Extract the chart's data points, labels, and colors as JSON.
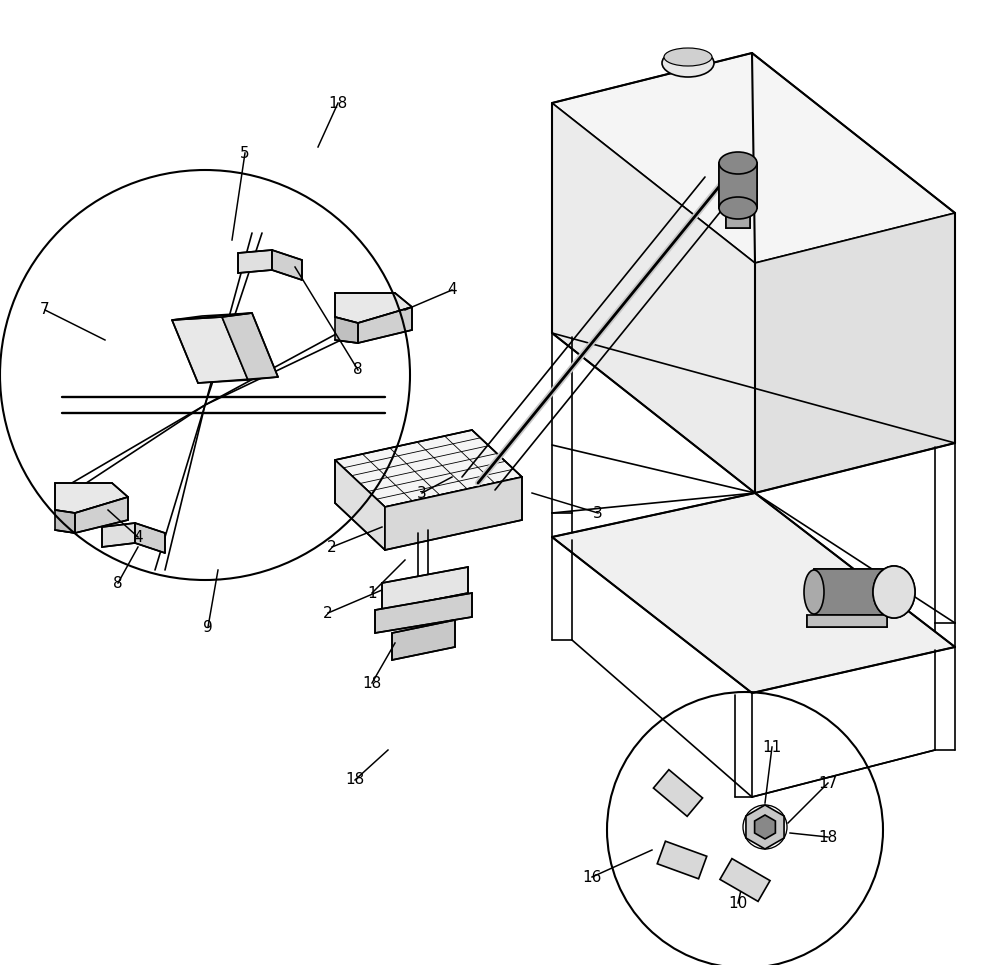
{
  "bg_color": "#ffffff",
  "line_color": "#000000",
  "line_width": 1.2,
  "fig_width": 10.0,
  "fig_height": 9.65
}
